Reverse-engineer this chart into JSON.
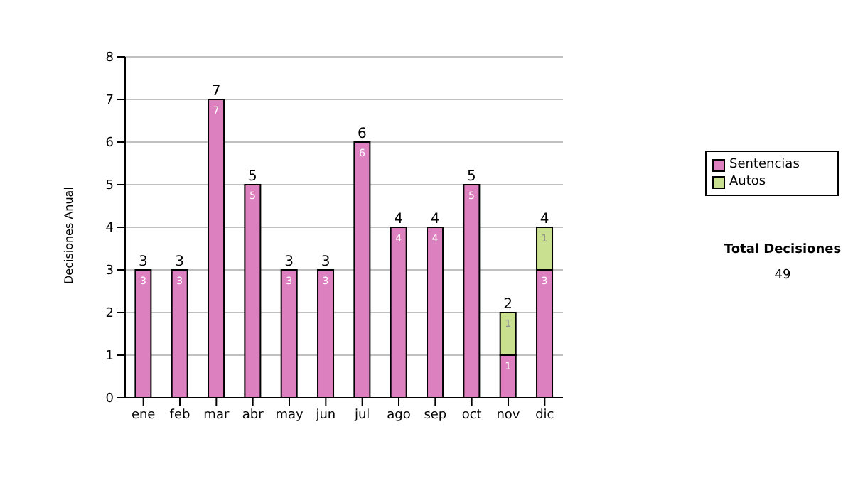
{
  "chart_data": {
    "type": "bar",
    "ylabel": "Decisiones Anual",
    "categories": [
      "ene",
      "feb",
      "mar",
      "abr",
      "may",
      "jun",
      "jul",
      "ago",
      "sep",
      "oct",
      "nov",
      "dic"
    ],
    "series": [
      {
        "name": "Sentencias",
        "color": "#dd80c0",
        "values": [
          3,
          3,
          7,
          5,
          3,
          3,
          6,
          4,
          4,
          5,
          1,
          3
        ],
        "value_labels": [
          "3",
          "3",
          "7",
          "5",
          "3",
          "3",
          "6",
          "4",
          "4",
          "5",
          "1",
          "3"
        ]
      },
      {
        "name": "Autos",
        "color": "#c8e090",
        "values": [
          null,
          null,
          null,
          null,
          null,
          null,
          null,
          null,
          null,
          null,
          1,
          1
        ],
        "value_labels": [
          null,
          null,
          null,
          null,
          null,
          null,
          null,
          null,
          null,
          null,
          "1",
          "1"
        ]
      }
    ],
    "stacked": true,
    "totals": [
      "3",
      "3",
      "7",
      "5",
      "3",
      "3",
      "6",
      "4",
      "4",
      "5",
      "2",
      "4"
    ],
    "ylim": [
      0,
      8
    ],
    "yticks": [
      0,
      1,
      2,
      3,
      4,
      5,
      6,
      7,
      8
    ],
    "grid": "y",
    "legend": "right",
    "annotations": [
      "Total Decisiones",
      "49"
    ]
  }
}
